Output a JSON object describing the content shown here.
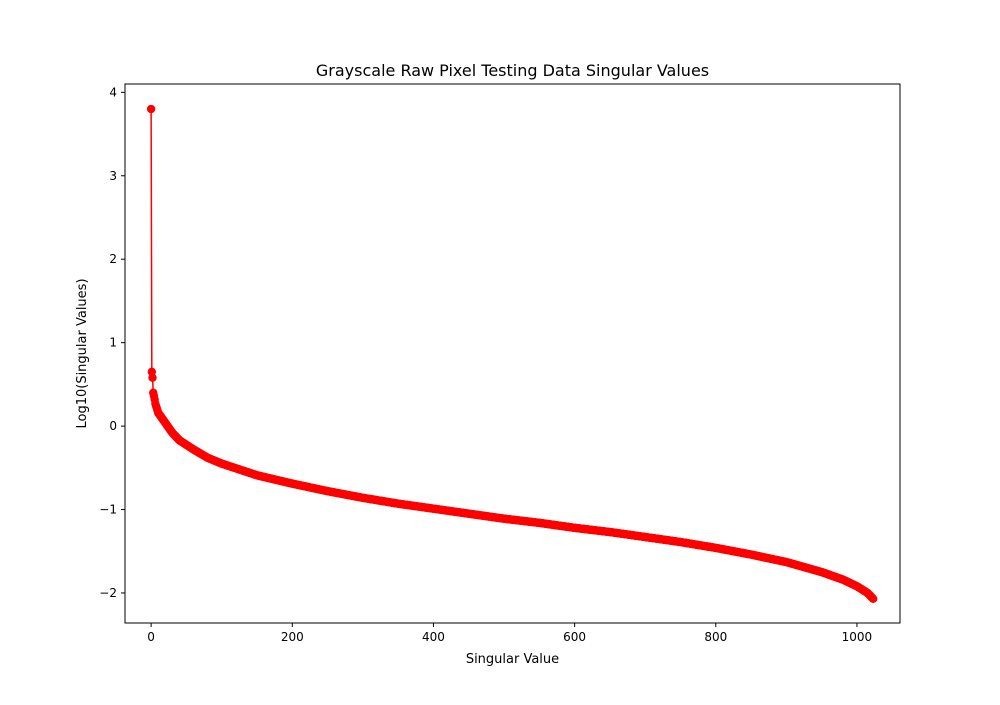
{
  "chart_data": {
    "type": "line",
    "title": "Grayscale Raw Pixel Testing Data Singular Values",
    "xlabel": "Singular Value",
    "ylabel": "Log10(Singular Values)",
    "xlim": [
      -37,
      1061
    ],
    "ylim": [
      -2.36,
      4.1
    ],
    "x_ticks": [
      0,
      200,
      400,
      600,
      800,
      1000
    ],
    "y_ticks": [
      -2,
      -1,
      0,
      1,
      2,
      3,
      4
    ],
    "x_tick_labels": [
      "0",
      "200",
      "400",
      "600",
      "800",
      "1000"
    ],
    "y_tick_labels": [
      "−2",
      "−1",
      "0",
      "1",
      "2",
      "3",
      "4"
    ],
    "grid": false,
    "legend": "none",
    "series_color": "#ff0000",
    "marker": "circle",
    "series": [
      {
        "point_count": 1024,
        "x_range": [
          0,
          1023
        ],
        "leading_values": [
          3.8,
          0.65,
          0.58,
          0.4,
          0.36,
          0.32,
          0.27
        ],
        "profile": [
          [
            10,
            0.16
          ],
          [
            20,
            0.04
          ],
          [
            30,
            -0.08
          ],
          [
            40,
            -0.17
          ],
          [
            60,
            -0.28
          ],
          [
            80,
            -0.38
          ],
          [
            100,
            -0.45
          ],
          [
            150,
            -0.59
          ],
          [
            200,
            -0.69
          ],
          [
            250,
            -0.78
          ],
          [
            300,
            -0.86
          ],
          [
            350,
            -0.93
          ],
          [
            400,
            -0.99
          ],
          [
            450,
            -1.05
          ],
          [
            500,
            -1.11
          ],
          [
            550,
            -1.16
          ],
          [
            600,
            -1.22
          ],
          [
            650,
            -1.27
          ],
          [
            700,
            -1.33
          ],
          [
            750,
            -1.39
          ],
          [
            800,
            -1.46
          ],
          [
            850,
            -1.54
          ],
          [
            900,
            -1.63
          ],
          [
            950,
            -1.75
          ],
          [
            980,
            -1.84
          ],
          [
            1000,
            -1.92
          ],
          [
            1015,
            -2.0
          ],
          [
            1023,
            -2.07
          ]
        ]
      }
    ]
  }
}
